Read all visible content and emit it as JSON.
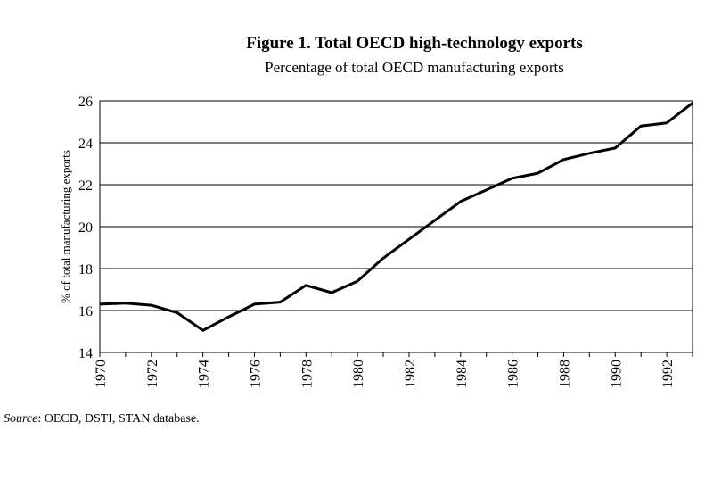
{
  "chart_data": {
    "type": "line",
    "title": "Figure 1.  Total OECD high-technology exports",
    "subtitle": "Percentage of total OECD manufacturing exports",
    "xlabel": "",
    "ylabel": "% of total manufacturing exports",
    "xlim": [
      1970,
      1993
    ],
    "ylim": [
      14,
      26
    ],
    "grid": true,
    "x_ticks": [
      "1970",
      "1972",
      "1974",
      "1976",
      "1978",
      "1980",
      "1982",
      "1984",
      "1986",
      "1988",
      "1990",
      "1992"
    ],
    "y_ticks": [
      "14",
      "16",
      "18",
      "20",
      "22",
      "24",
      "26"
    ],
    "series": [
      {
        "name": "Total OECD high-technology exports",
        "color": "#000000",
        "x": [
          1970,
          1971,
          1972,
          1973,
          1974,
          1975,
          1976,
          1977,
          1978,
          1979,
          1980,
          1981,
          1982,
          1983,
          1984,
          1985,
          1986,
          1987,
          1988,
          1989,
          1990,
          1991,
          1992,
          1993
        ],
        "values": [
          16.3,
          16.35,
          16.25,
          15.9,
          15.05,
          15.7,
          16.3,
          16.4,
          17.2,
          16.85,
          17.4,
          18.5,
          19.4,
          20.3,
          21.2,
          21.75,
          22.3,
          22.55,
          23.2,
          23.5,
          23.75,
          24.8,
          24.95,
          25.9
        ]
      }
    ]
  },
  "source": {
    "label": "Source",
    "text": ":  OECD, DSTI, STAN database."
  }
}
